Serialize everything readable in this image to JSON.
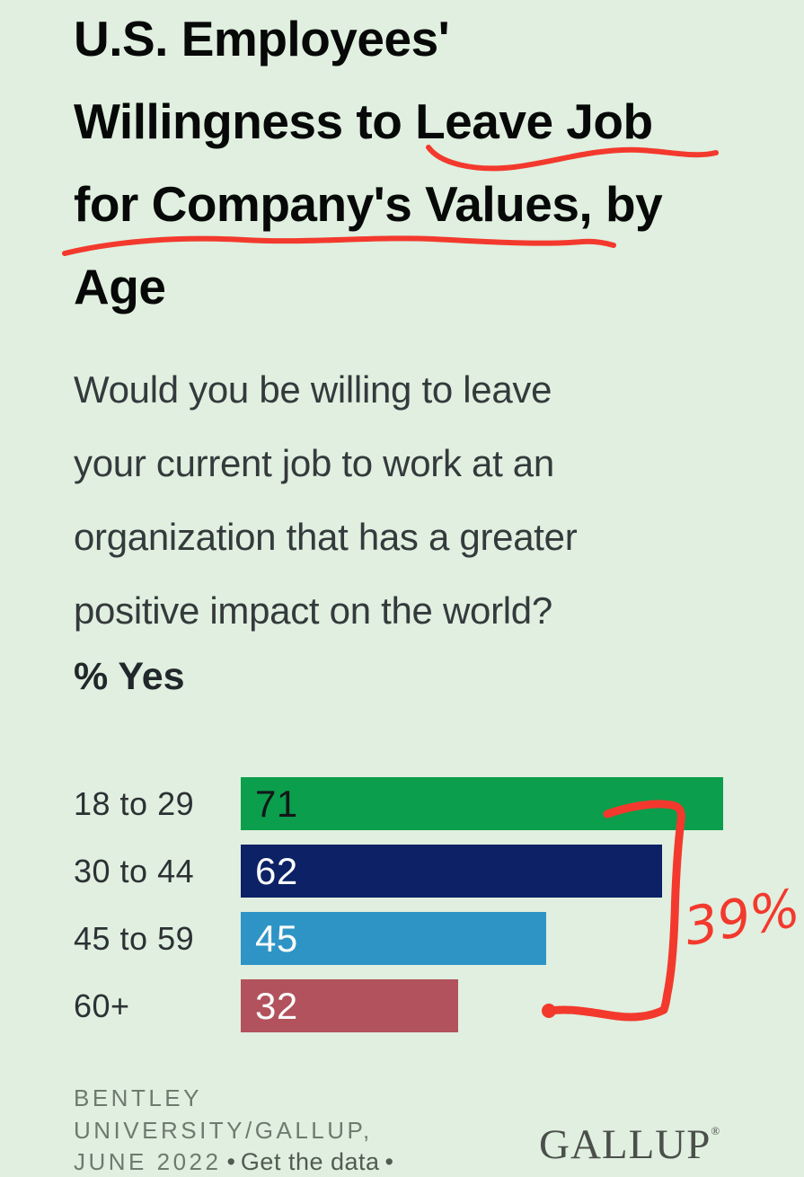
{
  "page": {
    "background": "#e0efdf"
  },
  "title": {
    "lines": [
      "U.S. Employees'",
      "Willingness to Leave Job",
      "for Company's Values, by",
      "Age"
    ]
  },
  "question": {
    "lines": [
      "Would you be willing to leave",
      "your current job to work at an",
      "organization that has a greater",
      "positive impact on the world?"
    ],
    "metric_label": "% Yes"
  },
  "chart_data": {
    "type": "bar",
    "orientation": "horizontal",
    "title": "U.S. Employees' Willingness to Leave Job for Company's Values, by Age",
    "categories": [
      "18 to 29",
      "30 to 44",
      "45 to 59",
      "60+"
    ],
    "values": [
      71,
      62,
      45,
      32
    ],
    "bars": [
      {
        "label": "18 to 29",
        "value": 71,
        "color": "#0b9e4c",
        "value_color": "#131719"
      },
      {
        "label": "30 to 44",
        "value": 62,
        "color": "#0d2166",
        "value_color": "#fafbfa"
      },
      {
        "label": "45 to 59",
        "value": 45,
        "color": "#2e94c6",
        "value_color": "#fafbfa"
      },
      {
        "label": "60+",
        "value": 32,
        "color": "#b2525c",
        "value_color": "#fafbfa"
      }
    ],
    "xlim": [
      0,
      71
    ],
    "value_labels": "inside-start",
    "grid": false,
    "legend": false
  },
  "annotation": {
    "color": "#f3392d",
    "note_text": "39%.",
    "underlined_phrases": [
      "Leave Job",
      "for Company's Values"
    ]
  },
  "footer": {
    "source_lines": [
      "BENTLEY",
      "UNIVERSITY/GALLUP,",
      "JUNE 2022"
    ],
    "bullet": "•",
    "get_data_label": "Get the data",
    "logo_text": "GALLUP",
    "logo_reg": "®"
  }
}
